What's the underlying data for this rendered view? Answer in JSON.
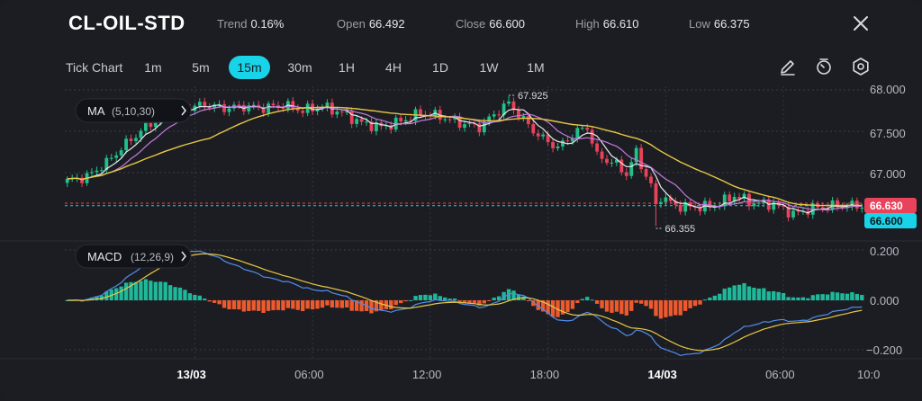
{
  "header": {
    "symbol": "CL-OIL-STD",
    "trend_label": "Trend",
    "trend_value": "0.16%",
    "open_label": "Open",
    "open_value": "66.492",
    "close_label": "Close",
    "close_value": "66.600",
    "high_label": "High",
    "high_value": "66.610",
    "low_label": "Low",
    "low_value": "66.375"
  },
  "toolbar": {
    "chart_type": "Tick Chart",
    "timeframes": [
      "1m",
      "5m",
      "15m",
      "30m",
      "1H",
      "4H",
      "1D",
      "1W",
      "1M"
    ],
    "active_timeframe": "15m",
    "icons": [
      "draw-icon",
      "timer-icon",
      "settings-icon"
    ]
  },
  "colors": {
    "up": "#22c08a",
    "down": "#e8435a",
    "ma5": "#e8e8ee",
    "ma10": "#c17ae0",
    "ma30": "#e6c845",
    "macd": "#4f8ef0",
    "signal": "#e6c845",
    "hist_up": "#1fb89a",
    "hist_down": "#ee5a2e",
    "accent": "#19d3e8"
  },
  "chart_data": [
    {
      "type": "candlestick",
      "indicator": "MA",
      "indicator_params": "(5,10,30)",
      "y_ticks": [
        "68.000",
        "67.500",
        "67.000"
      ],
      "ylim": [
        66.28,
        68.05
      ],
      "x_ticks": [
        "13/03",
        "06:00",
        "12:00",
        "18:00",
        "14/03",
        "06:00",
        "10:0"
      ],
      "x_tick_pos": [
        26,
        50,
        74,
        98,
        122,
        146,
        163
      ],
      "n_bars": 163,
      "max_annotation": {
        "label": "67.925",
        "value": 67.925,
        "bar": 90
      },
      "min_annotation": {
        "label": "66.355",
        "value": 66.355,
        "bar": 120
      },
      "price_tags": [
        {
          "label": "66.630",
          "value": 66.63,
          "color": "#e8435a"
        },
        {
          "label": "66.600",
          "value": 66.6,
          "color": "#19d3e8"
        }
      ],
      "grid": true,
      "close_anchors": [
        [
          0,
          66.9
        ],
        [
          4,
          66.95
        ],
        [
          8,
          67.12
        ],
        [
          12,
          67.35
        ],
        [
          16,
          67.55
        ],
        [
          20,
          67.7
        ],
        [
          24,
          67.78
        ],
        [
          28,
          67.82
        ],
        [
          32,
          67.78
        ],
        [
          36,
          67.8
        ],
        [
          40,
          67.78
        ],
        [
          44,
          67.82
        ],
        [
          48,
          67.75
        ],
        [
          52,
          67.8
        ],
        [
          56,
          67.72
        ],
        [
          60,
          67.6
        ],
        [
          64,
          67.55
        ],
        [
          68,
          67.62
        ],
        [
          72,
          67.72
        ],
        [
          76,
          67.68
        ],
        [
          80,
          67.6
        ],
        [
          84,
          67.55
        ],
        [
          88,
          67.75
        ],
        [
          90,
          67.85
        ],
        [
          92,
          67.7
        ],
        [
          96,
          67.45
        ],
        [
          100,
          67.3
        ],
        [
          104,
          67.5
        ],
        [
          106,
          67.55
        ],
        [
          108,
          67.2
        ],
        [
          112,
          67.1
        ],
        [
          114,
          66.98
        ],
        [
          116,
          67.25
        ],
        [
          118,
          66.95
        ],
        [
          120,
          66.75
        ],
        [
          124,
          66.6
        ],
        [
          128,
          66.58
        ],
        [
          132,
          66.6
        ],
        [
          136,
          66.72
        ],
        [
          140,
          66.63
        ],
        [
          144,
          66.62
        ],
        [
          148,
          66.5
        ],
        [
          152,
          66.57
        ],
        [
          156,
          66.6
        ],
        [
          162,
          66.6
        ]
      ]
    },
    {
      "type": "macd",
      "indicator": "MACD",
      "indicator_params": "(12,26,9)",
      "y_ticks": [
        "0.200",
        "0.000",
        "−0.200"
      ],
      "ylim": [
        -0.24,
        0.24
      ]
    }
  ]
}
